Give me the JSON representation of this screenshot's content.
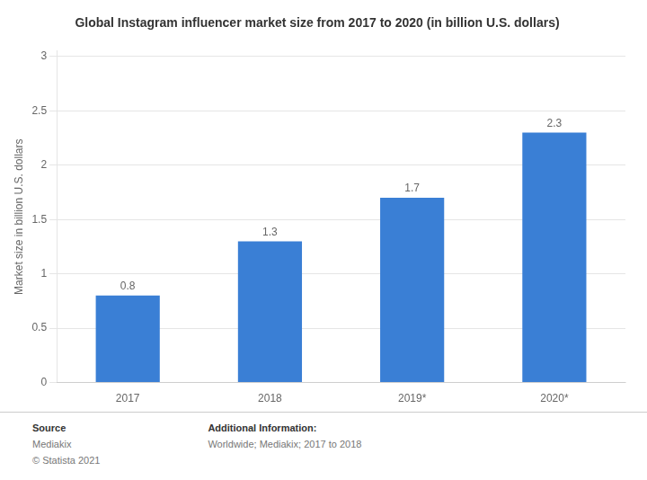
{
  "chart_data": {
    "type": "bar",
    "title": "Global Instagram influencer market size from 2017 to 2020 (in billion U.S. dollars)",
    "y_label": "Market size in billion U.S. dollars",
    "categories": [
      "2017",
      "2018",
      "2019*",
      "2020*"
    ],
    "values": [
      0.8,
      1.3,
      1.7,
      2.3
    ],
    "color": "#3a7fd5",
    "ylim": [
      0,
      3.05
    ],
    "yticks": [
      0,
      0.5,
      1,
      1.5,
      2,
      2.5,
      3
    ],
    "grid": true,
    "data_labels": true,
    "annotations": [
      [
        "Source",
        "Mediakix",
        "© Statista 2021"
      ],
      [
        "Additional Information:",
        "Worldwide; Mediakix; 2017 to 2018"
      ]
    ]
  }
}
